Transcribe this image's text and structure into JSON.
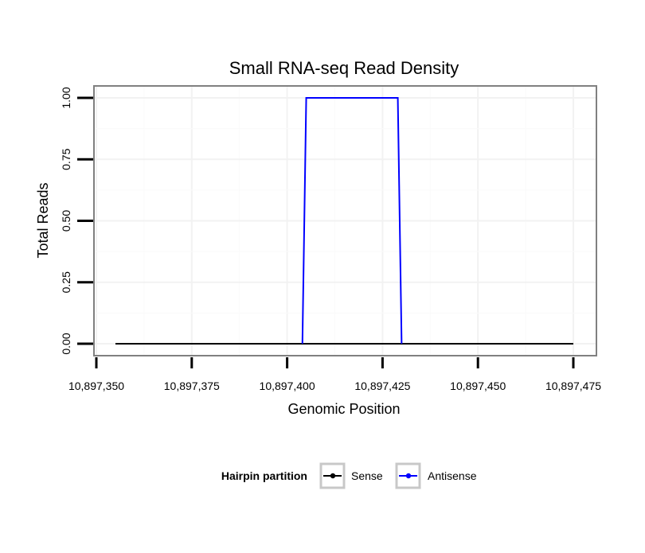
{
  "chart_data": {
    "type": "line",
    "title": "Small RNA-seq Read Density",
    "xlabel": "Genomic Position",
    "ylabel": "Total Reads",
    "xlim": [
      10897350,
      10897475
    ],
    "ylim": [
      0,
      1
    ],
    "x_ticks": [
      10897350,
      10897375,
      10897400,
      10897425,
      10897450,
      10897475
    ],
    "x_tick_labels": [
      "10,897,350",
      "10,897,375",
      "10,897,400",
      "10,897,425",
      "10,897,450",
      "10,897,475"
    ],
    "y_ticks": [
      0,
      0.25,
      0.5,
      0.75,
      1
    ],
    "y_tick_labels": [
      "0.00",
      "0.25",
      "0.50",
      "0.75",
      "1.00"
    ],
    "grid": true,
    "legend": {
      "title": "Hairpin partition",
      "position": "bottom"
    },
    "series": [
      {
        "name": "Sense",
        "color": "#000000",
        "points": [
          [
            10897355,
            0
          ],
          [
            10897475,
            0
          ]
        ]
      },
      {
        "name": "Antisense",
        "color": "#0000ff",
        "points": [
          [
            10897404,
            0
          ],
          [
            10897405,
            1
          ],
          [
            10897429,
            1
          ],
          [
            10897430,
            0
          ]
        ]
      }
    ]
  }
}
